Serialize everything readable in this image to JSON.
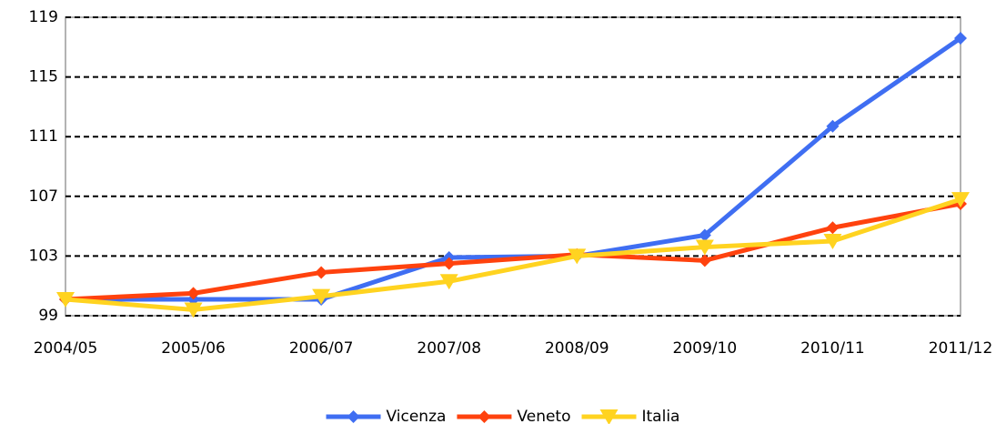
{
  "chart_data": {
    "type": "line",
    "categories": [
      "2004/05",
      "2005/06",
      "2006/07",
      "2007/08",
      "2008/09",
      "2009/10",
      "2010/11",
      "2011/12"
    ],
    "series": [
      {
        "name": "Vicenza",
        "color": "#3f6ef2",
        "marker": "diamond",
        "values": [
          100.1,
          100.1,
          100.1,
          102.9,
          103.0,
          104.4,
          111.7,
          117.6
        ]
      },
      {
        "name": "Veneto",
        "color": "#ff420e",
        "marker": "diamond",
        "values": [
          100.1,
          100.5,
          101.9,
          102.5,
          103.1,
          102.7,
          104.9,
          106.5
        ]
      },
      {
        "name": "Italia",
        "color": "#ffd320",
        "marker": "triangle-down",
        "values": [
          100.1,
          99.4,
          100.3,
          101.3,
          103.0,
          103.6,
          104.0,
          106.8
        ]
      }
    ],
    "ylim": [
      99,
      119
    ],
    "yticks": [
      99,
      103,
      107,
      111,
      115,
      119
    ],
    "grid": true,
    "legend": "bottom"
  }
}
